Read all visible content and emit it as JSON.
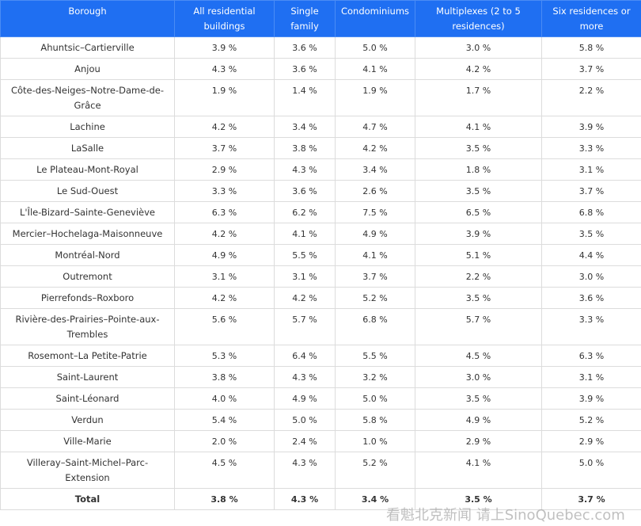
{
  "table": {
    "header": [
      "Borough",
      "All residential buildings",
      "Single family",
      "Condominiums",
      "Multiplexes (2 to 5 residences)",
      "Six residences or more"
    ],
    "rows": [
      [
        "Ahuntsic–Cartierville",
        "3.9 %",
        "3.6 %",
        "5.0 %",
        "3.0 %",
        "5.8 %"
      ],
      [
        "Anjou",
        "4.3 %",
        "3.6 %",
        "4.1 %",
        "4.2 %",
        "3.7 %"
      ],
      [
        "Côte-des-Neiges–Notre-Dame-de-Grâce",
        "1.9 %",
        "1.4 %",
        "1.9 %",
        "1.7 %",
        "2.2 %"
      ],
      [
        "Lachine",
        "4.2 %",
        "3.4 %",
        "4.7 %",
        "4.1 %",
        "3.9 %"
      ],
      [
        "LaSalle",
        "3.7 %",
        "3.8 %",
        "4.2 %",
        "3.5 %",
        "3.3 %"
      ],
      [
        "Le Plateau-Mont-Royal",
        "2.9 %",
        "4.3 %",
        "3.4 %",
        "1.8 %",
        "3.1 %"
      ],
      [
        "Le Sud-Ouest",
        "3.3 %",
        "3.6 %",
        "2.6 %",
        "3.5 %",
        "3.7 %"
      ],
      [
        "L'Île-Bizard–Sainte-Geneviève",
        "6.3 %",
        "6.2 %",
        "7.5 %",
        "6.5 %",
        "6.8 %"
      ],
      [
        "Mercier–Hochelaga-Maisonneuve",
        "4.2 %",
        "4.1 %",
        "4.9 %",
        "3.9 %",
        "3.5 %"
      ],
      [
        "Montréal-Nord",
        "4.9 %",
        "5.5 %",
        "4.1 %",
        "5.1 %",
        "4.4 %"
      ],
      [
        "Outremont",
        "3.1 %",
        "3.1 %",
        "3.7 %",
        "2.2 %",
        "3.0 %"
      ],
      [
        "Pierrefonds–Roxboro",
        "4.2 %",
        "4.2 %",
        "5.2 %",
        "3.5 %",
        "3.6 %"
      ],
      [
        "Rivière-des-Prairies–Pointe-aux-Trembles",
        "5.6 %",
        "5.7 %",
        "6.8 %",
        "5.7 %",
        "3.3 %"
      ],
      [
        "Rosemont–La Petite-Patrie",
        "5.3 %",
        "6.4 %",
        "5.5 %",
        "4.5 %",
        "6.3 %"
      ],
      [
        "Saint-Laurent",
        "3.8 %",
        "4.3 %",
        "3.2 %",
        "3.0 %",
        "3.1 %"
      ],
      [
        "Saint-Léonard",
        "4.0 %",
        "4.9 %",
        "5.0 %",
        "3.5 %",
        "3.9 %"
      ],
      [
        "Verdun",
        "5.4 %",
        "5.0 %",
        "5.8 %",
        "4.9 %",
        "5.2 %"
      ],
      [
        "Ville-Marie",
        "2.0 %",
        "2.4 %",
        "1.0 %",
        "2.9 %",
        "2.9 %"
      ],
      [
        "Villeray–Saint-Michel–Parc-Extension",
        "4.5 %",
        "4.3 %",
        "5.2 %",
        "4.1 %",
        "5.0 %"
      ],
      [
        "Total",
        "3.8 %",
        "4.3 %",
        "3.4 %",
        "3.5 %",
        "3.7 %"
      ]
    ]
  },
  "watermark": "看魁北克新闻 请上SinoQuebec.com"
}
